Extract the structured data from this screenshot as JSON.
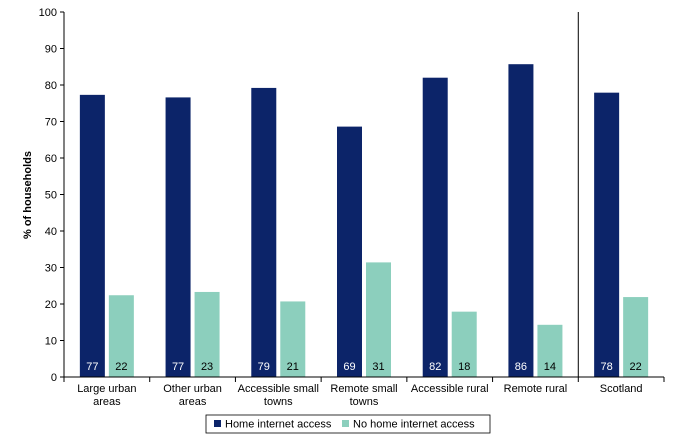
{
  "chart_data": {
    "type": "bar",
    "ylabel": "% of households",
    "xlabel": "",
    "ylim": [
      0,
      100
    ],
    "yticks": [
      0,
      10,
      20,
      30,
      40,
      50,
      60,
      70,
      80,
      90,
      100
    ],
    "categories": [
      [
        "Large urban",
        "areas"
      ],
      [
        "Other urban",
        "areas"
      ],
      [
        "Accessible small",
        "towns"
      ],
      [
        "Remote small",
        "towns"
      ],
      [
        "Accessible rural"
      ],
      [
        "Remote rural"
      ],
      [
        "Scotland"
      ]
    ],
    "separator_before_category_index": 6,
    "series": [
      {
        "name": "Home internet access",
        "color": "#0c2469",
        "values": [
          77.3,
          76.6,
          79.2,
          68.6,
          82.0,
          85.7,
          77.9
        ],
        "labels": [
          "77",
          "77",
          "79",
          "69",
          "82",
          "86",
          "78"
        ]
      },
      {
        "name": "No home internet access",
        "color": "#8ccfbd",
        "values": [
          22.4,
          23.3,
          20.7,
          31.4,
          17.9,
          14.3,
          21.9
        ],
        "labels": [
          "22",
          "23",
          "21",
          "31",
          "18",
          "14",
          "22"
        ]
      }
    ],
    "legend_position": "bottom",
    "grid": false
  }
}
